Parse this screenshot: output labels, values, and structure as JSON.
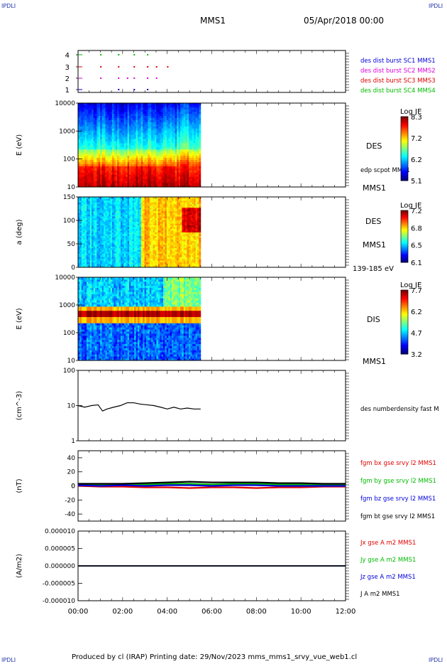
{
  "corner_label": "IPDLI",
  "header": {
    "spacecraft": "MMS1",
    "date": "05/Apr/2018 00:00"
  },
  "footer": {
    "text": "Produced by cl (IRAP)   Printing date: 29/Nov/2023   mms_mms1_srvy_vue_web1.cl"
  },
  "colors": {
    "red": "#e00000",
    "green": "#00bb00",
    "blue": "#0000dd",
    "magenta": "#dd00dd",
    "black": "#000000"
  },
  "chart_data": [
    {
      "type": "scatter",
      "panel": "availability",
      "yticks": [
        1,
        2,
        3,
        4
      ],
      "legend": [
        {
          "label": "des dist burst SC1 MMS1",
          "color": "#0000dd"
        },
        {
          "label": "des dist burst SC2 MMS2",
          "color": "#dd00dd"
        },
        {
          "label": "des dist burst SC3 MMS3",
          "color": "#e00000"
        },
        {
          "label": "des dist burst SC4 MMS4",
          "color": "#00bb00"
        }
      ],
      "series": [
        {
          "y": 4,
          "color": "#00bb00",
          "times": [
            0.1,
            0.9,
            1.6,
            2.2
          ]
        },
        {
          "y": 3,
          "color": "#e00000",
          "times": [
            0.1,
            0.9,
            1.6,
            2.2,
            2.6,
            3.1
          ]
        },
        {
          "y": 2,
          "color": "#dd00dd",
          "times": [
            0.1,
            0.9,
            1.3,
            1.6,
            2.2,
            2.6
          ]
        },
        {
          "y": 1,
          "color": "#0000dd",
          "times": [
            0.9,
            1.6,
            2.2
          ]
        }
      ]
    },
    {
      "type": "heatmap",
      "panel": "des-energy",
      "ylabel": "E (eV)",
      "yscale": "log",
      "yticks": [
        "10",
        "100",
        "1000",
        "10000"
      ],
      "data_end_hours": 5.5,
      "instrument": "DES",
      "extra_label": "edp scpot MMS1",
      "spacecraft": "MMS1",
      "colorbar": {
        "title": "Log JE",
        "ticks": [
          "8.3",
          "7.2",
          "6.2",
          "5.1"
        ]
      }
    },
    {
      "type": "heatmap",
      "panel": "des-pitch",
      "ylabel": "a (deg)",
      "yticks": [
        "0",
        "50",
        "100",
        "150"
      ],
      "data_end_hours": 5.5,
      "instrument": "DES",
      "spacecraft": "MMS1",
      "energy_range": "139-185 eV",
      "colorbar": {
        "title": "Log JE",
        "ticks": [
          "7.2",
          "6.8",
          "6.5",
          "6.1"
        ]
      }
    },
    {
      "type": "heatmap",
      "panel": "dis-energy",
      "ylabel": "E (eV)",
      "yscale": "log",
      "yticks": [
        "10",
        "100",
        "1000",
        "10000"
      ],
      "data_end_hours": 5.5,
      "instrument": "DIS",
      "spacecraft": "MMS1",
      "colorbar": {
        "title": "Log JE",
        "ticks": [
          "7.7",
          "6.2",
          "4.7",
          "3.2"
        ]
      }
    },
    {
      "type": "line",
      "panel": "density",
      "ylabel": "(cm^-3)",
      "yscale": "log",
      "yticks": [
        "1",
        "10",
        "100"
      ],
      "legend": [
        {
          "label": "des numberdensity fast M",
          "color": "#000000"
        }
      ],
      "x": [
        0,
        0.3,
        0.6,
        0.9,
        1.1,
        1.3,
        1.6,
        1.9,
        2.2,
        2.5,
        2.8,
        3.1,
        3.4,
        3.7,
        4.0,
        4.3,
        4.6,
        4.9,
        5.2,
        5.5
      ],
      "values": [
        10,
        9,
        10,
        10.5,
        7,
        8,
        9,
        10,
        12,
        12,
        11,
        10.5,
        10,
        9,
        8,
        9,
        8,
        8.5,
        8,
        8
      ]
    },
    {
      "type": "line",
      "panel": "magnetic-field",
      "ylabel": "(nT)",
      "ylim": [
        -50,
        50
      ],
      "yticks": [
        "-40",
        "-20",
        "0",
        "20",
        "40"
      ],
      "x": [
        0,
        1,
        2,
        3,
        4,
        5,
        6,
        7,
        8,
        9,
        10,
        11,
        12
      ],
      "series": [
        {
          "name": "fgm bx gse srvy l2 MMS1",
          "color": "#e00000",
          "values": [
            0,
            -1,
            -1,
            -2,
            -2,
            -3,
            -2,
            -2,
            -3,
            -2,
            -2,
            -1,
            -1
          ]
        },
        {
          "name": "fgm by gse srvy l2 MMS1",
          "color": "#00bb00",
          "values": [
            2,
            2,
            1,
            2,
            3,
            3,
            2,
            3,
            3,
            2,
            2,
            2,
            1
          ]
        },
        {
          "name": "fgm bz gse srvy l2 MMS1",
          "color": "#0000dd",
          "values": [
            1,
            0,
            1,
            0,
            1,
            1,
            0,
            1,
            1,
            0,
            0,
            0,
            0
          ]
        },
        {
          "name": "fgm bt gse srvy l2 MMS1",
          "color": "#000000",
          "values": [
            3,
            3,
            3,
            4,
            5,
            6,
            5,
            5,
            5,
            4,
            4,
            3,
            3
          ]
        }
      ]
    },
    {
      "type": "line",
      "panel": "current-density",
      "ylabel": "(A/m2)",
      "ylim": [
        -1e-05,
        1e-05
      ],
      "yticks": [
        "-0.000010",
        "-0.000005",
        "0.000000",
        "0.000005",
        "0.000010"
      ],
      "x": [
        0,
        12
      ],
      "series": [
        {
          "name": "Jx gse A m2 MMS1",
          "color": "#e00000",
          "values": [
            0,
            0
          ]
        },
        {
          "name": "Jy gse A m2 MMS1",
          "color": "#00bb00",
          "values": [
            0,
            0
          ]
        },
        {
          "name": "Jz gse A m2 MMS1",
          "color": "#0000dd",
          "values": [
            0,
            0
          ]
        },
        {
          "name": "J A m2 MMS1",
          "color": "#000000",
          "values": [
            0,
            0
          ]
        }
      ]
    }
  ],
  "xaxis": {
    "ticks": [
      "00:00",
      "02:00",
      "04:00",
      "06:00",
      "08:00",
      "10:00",
      "12:00"
    ]
  }
}
